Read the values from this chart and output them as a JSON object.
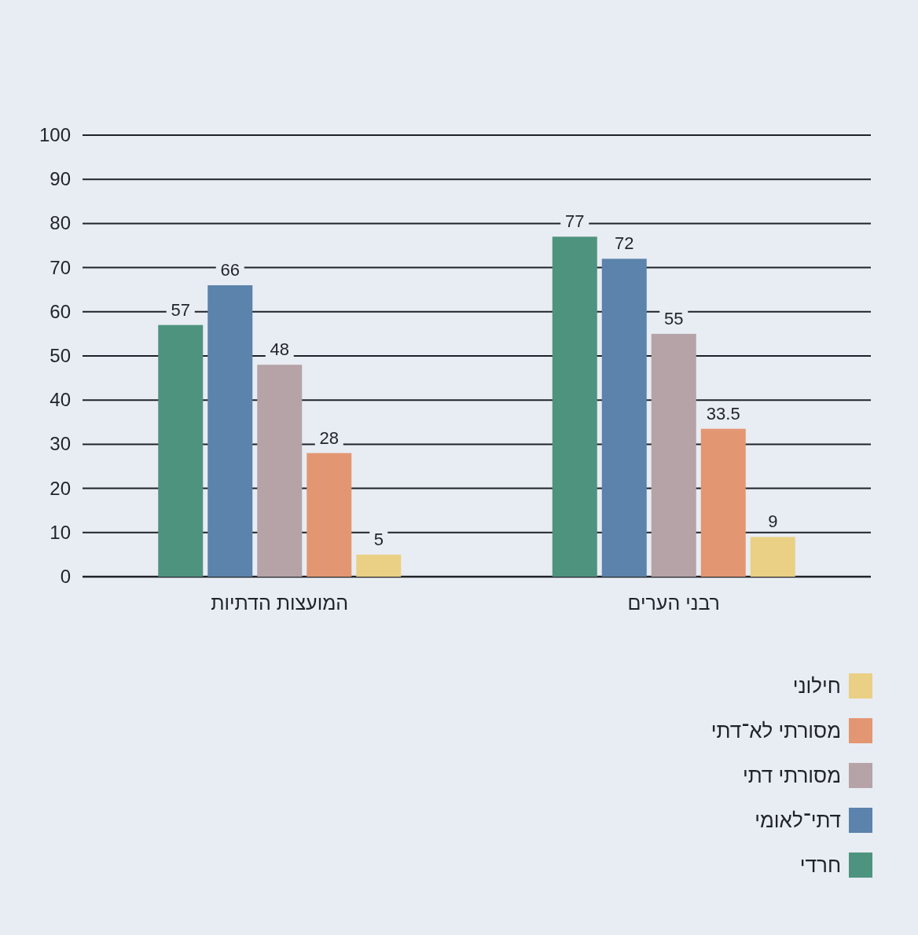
{
  "chart_data": {
    "type": "bar",
    "categories": [
      "המועצות הדתיות",
      "רבני הערים"
    ],
    "series": [
      {
        "name": "חרדי",
        "color": "#4e937e",
        "values": [
          57,
          77
        ]
      },
      {
        "name": "דתי־לאומי",
        "color": "#5b83ab",
        "values": [
          66,
          72
        ]
      },
      {
        "name": "מסורתי דתי",
        "color": "#b5a3a7",
        "values": [
          48,
          55
        ]
      },
      {
        "name": "מסורתי לא־דתי",
        "color": "#e39672",
        "values": [
          28,
          33.5
        ]
      },
      {
        "name": "חילוני",
        "color": "#e9d084",
        "values": [
          5,
          9
        ]
      }
    ],
    "ylim": [
      0,
      100
    ],
    "yticks": [
      0,
      10,
      20,
      30,
      40,
      50,
      60,
      70,
      80,
      90,
      100
    ],
    "grid": "y",
    "legend": "bottom right",
    "data_labels": true
  }
}
